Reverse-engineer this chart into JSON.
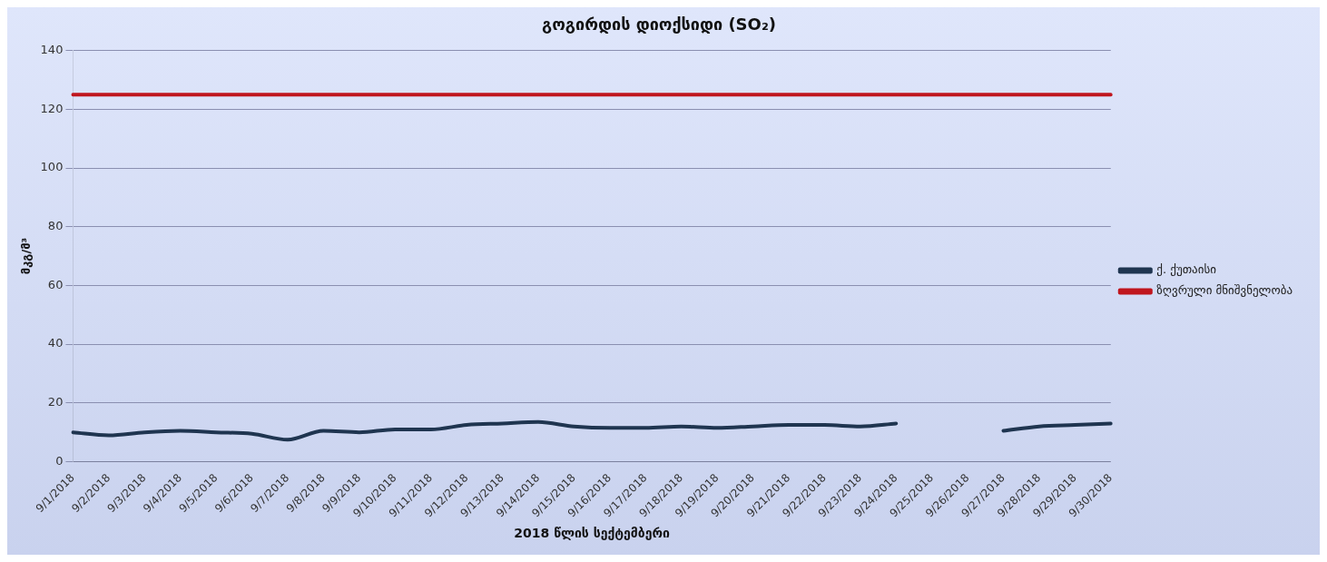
{
  "chart_data": {
    "type": "line",
    "title": "გოგირდის დიოქსიდი (SO₂)",
    "xlabel": "2018 წლის სექტემბერი",
    "ylabel": "მკგ/მ³",
    "categories": [
      "9/1/2018",
      "9/2/2018",
      "9/3/2018",
      "9/4/2018",
      "9/5/2018",
      "9/6/2018",
      "9/7/2018",
      "9/8/2018",
      "9/9/2018",
      "9/10/2018",
      "9/11/2018",
      "9/12/2018",
      "9/13/2018",
      "9/14/2018",
      "9/15/2018",
      "9/16/2018",
      "9/17/2018",
      "9/18/2018",
      "9/19/2018",
      "9/20/2018",
      "9/21/2018",
      "9/22/2018",
      "9/23/2018",
      "9/24/2018",
      "9/25/2018",
      "9/26/2018",
      "9/27/2018",
      "9/28/2018",
      "9/29/2018",
      "9/30/2018"
    ],
    "series": [
      {
        "name": "ქ. ქუთაისი",
        "color": "#1f3550",
        "values": [
          10,
          9,
          10,
          10.5,
          10,
          9.5,
          7.5,
          10.5,
          10,
          11,
          11,
          12.5,
          13,
          13.5,
          12,
          11.5,
          11.5,
          12,
          11.5,
          12,
          12.5,
          12.5,
          12,
          13,
          null,
          null,
          10.5,
          12,
          12.5,
          13
        ]
      },
      {
        "name": "ზღვრული მნიშვნელობა",
        "color": "#c0161e",
        "values": [
          125,
          125,
          125,
          125,
          125,
          125,
          125,
          125,
          125,
          125,
          125,
          125,
          125,
          125,
          125,
          125,
          125,
          125,
          125,
          125,
          125,
          125,
          125,
          125,
          125,
          125,
          125,
          125,
          125,
          125
        ]
      }
    ],
    "ylim": [
      0,
      140
    ],
    "yticks": [
      0,
      20,
      40,
      60,
      80,
      100,
      120,
      140
    ],
    "grid": "y",
    "legend": "right",
    "marker": "none",
    "line_style": "solid"
  }
}
